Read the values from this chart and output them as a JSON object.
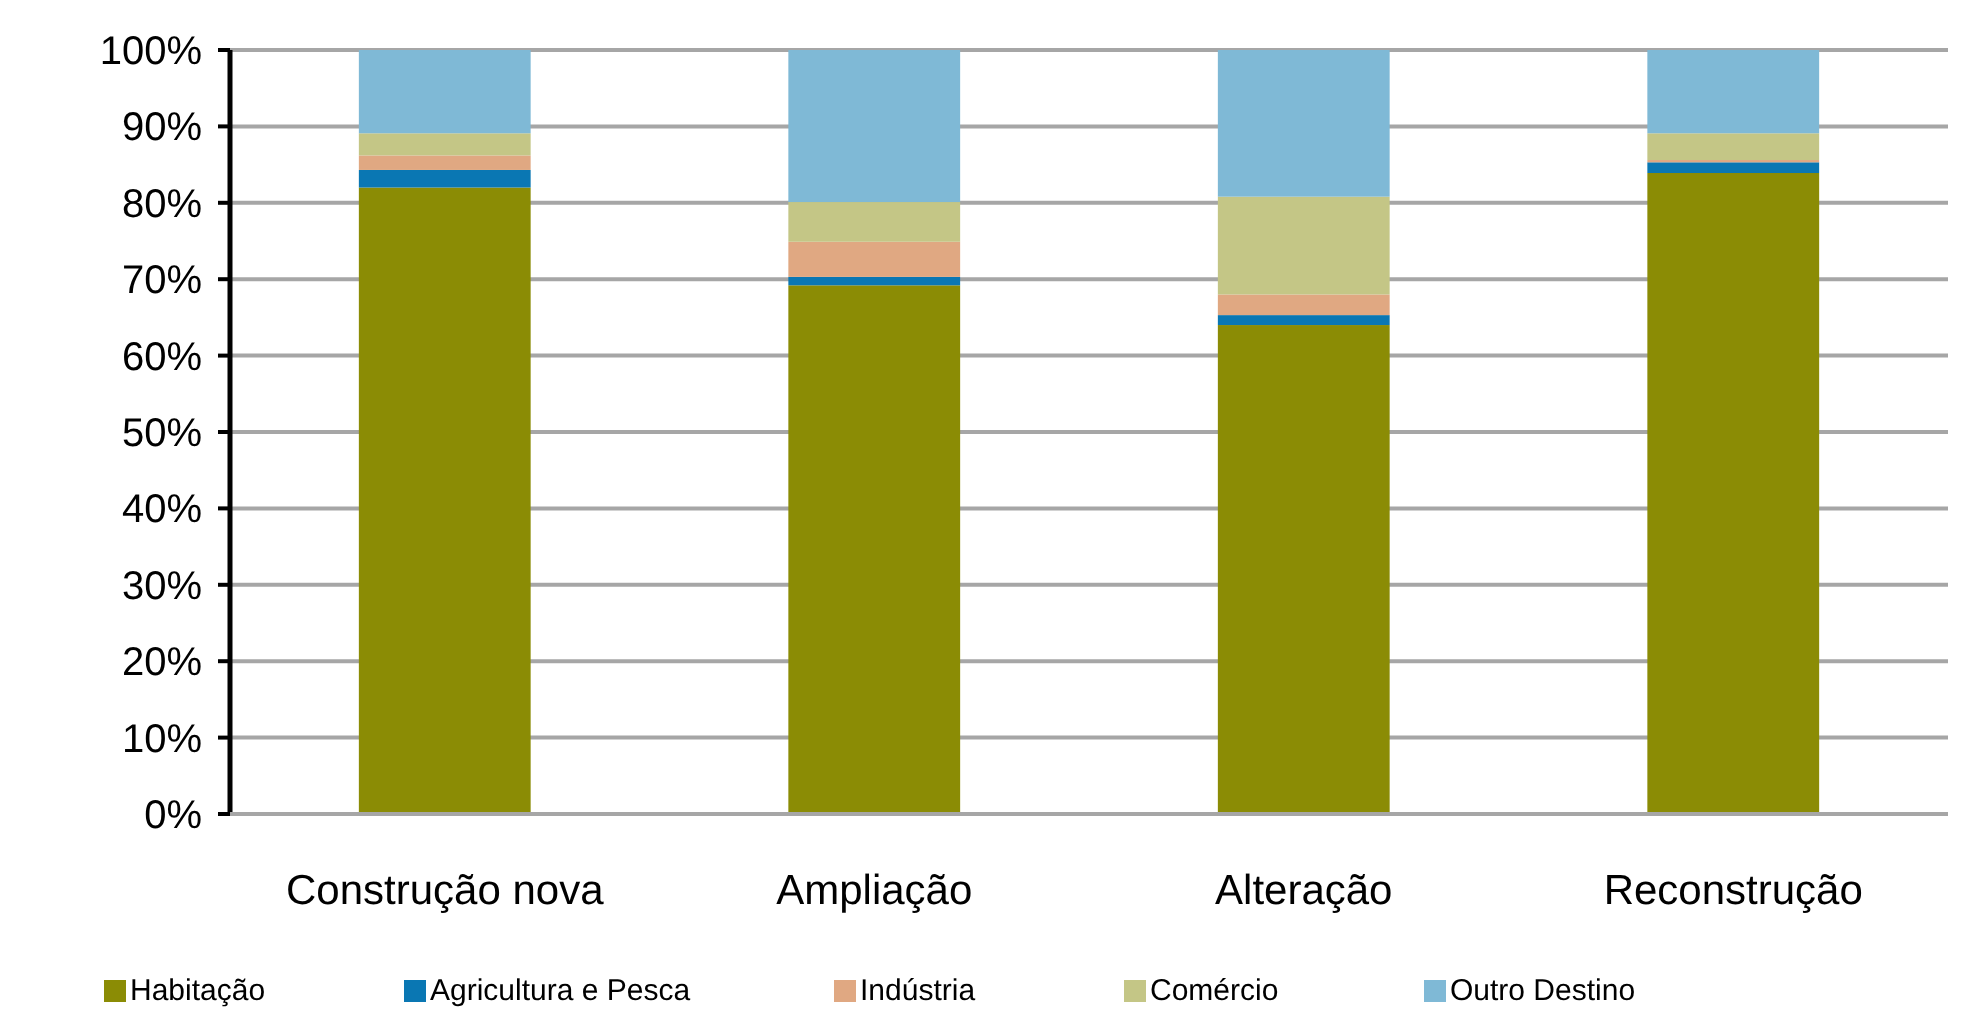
{
  "chart_data": {
    "type": "bar",
    "stacked": true,
    "categories": [
      "Construção nova",
      "Ampliação",
      "Alteração",
      "Reconstrução"
    ],
    "series": [
      {
        "name": "Habitação",
        "color": "#8b8c05",
        "values": [
          82,
          69.2,
          64,
          83.9
        ]
      },
      {
        "name": "Agricultura e Pesca",
        "color": "#0a77b3",
        "values": [
          2.3,
          1.1,
          1.3,
          1.4
        ]
      },
      {
        "name": "Indústria",
        "color": "#e0a882",
        "values": [
          1.9,
          4.6,
          2.7,
          0.3
        ]
      },
      {
        "name": "Comércio",
        "color": "#c4c686",
        "values": [
          2.9,
          5.2,
          12.8,
          3.5
        ]
      },
      {
        "name": "Outro Destino",
        "color": "#7fb9d6",
        "values": [
          10.9,
          19.9,
          19.2,
          10.9
        ]
      }
    ],
    "ylim": [
      0,
      100
    ],
    "yticks": [
      {
        "value": 0,
        "label": "0%"
      },
      {
        "value": 10,
        "label": "10%"
      },
      {
        "value": 20,
        "label": "20%"
      },
      {
        "value": 30,
        "label": "30%"
      },
      {
        "value": 40,
        "label": "40%"
      },
      {
        "value": 50,
        "label": "50%"
      },
      {
        "value": 60,
        "label": "60%"
      },
      {
        "value": 70,
        "label": "70%"
      },
      {
        "value": 80,
        "label": "80%"
      },
      {
        "value": 90,
        "label": "90%"
      },
      {
        "value": 100,
        "label": "100%"
      }
    ],
    "grid": "y",
    "legend": "bottom"
  }
}
